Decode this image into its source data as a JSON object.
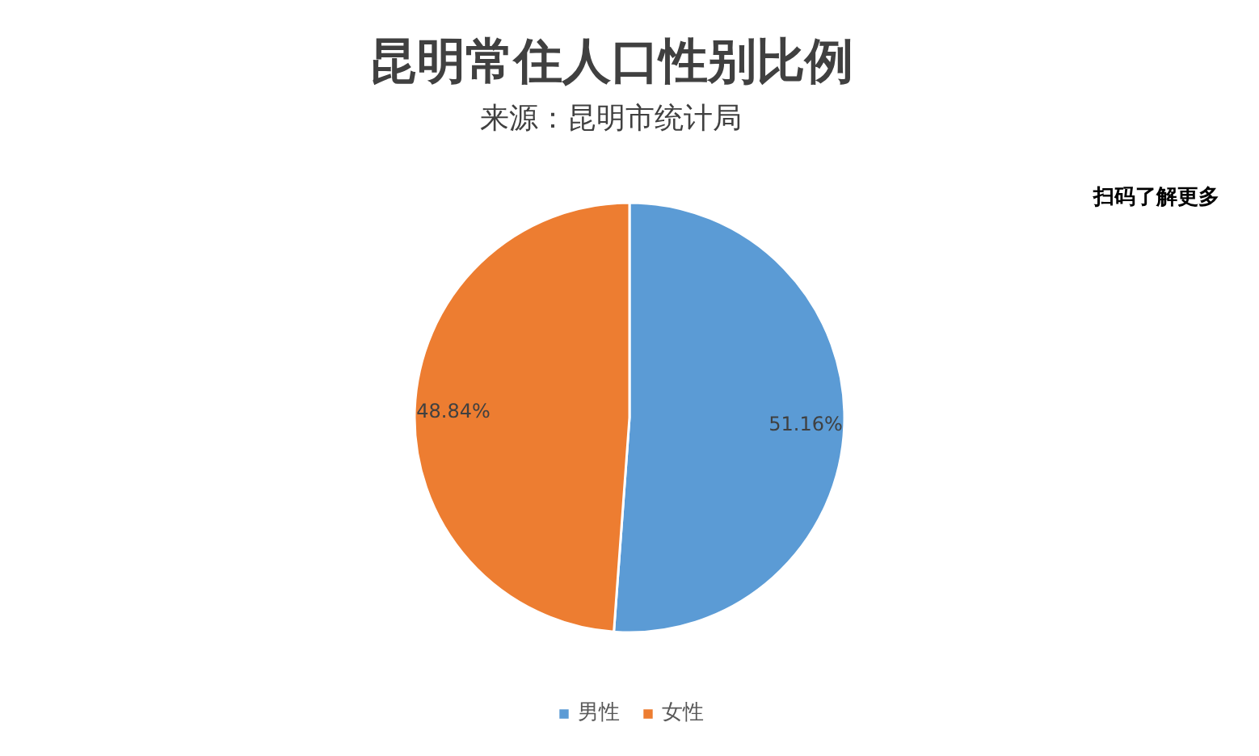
{
  "chart_data": {
    "type": "pie",
    "title": "昆明常住人口性别比例",
    "subtitle": "来源：昆明市统计局",
    "categories": [
      "男性",
      "女性"
    ],
    "values": [
      51.16,
      48.84
    ],
    "colors": [
      "#5b9bd5",
      "#ed7d31"
    ],
    "value_labels": [
      "51.16%",
      "48.84%"
    ],
    "legend": "bottom",
    "annotations": [
      "扫码了解更多"
    ]
  }
}
